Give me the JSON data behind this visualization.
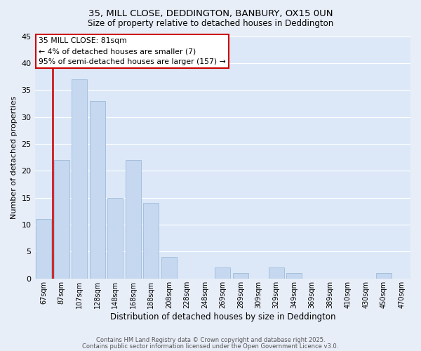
{
  "title1": "35, MILL CLOSE, DEDDINGTON, BANBURY, OX15 0UN",
  "title2": "Size of property relative to detached houses in Deddington",
  "xlabel": "Distribution of detached houses by size in Deddington",
  "ylabel": "Number of detached properties",
  "bar_labels": [
    "67sqm",
    "87sqm",
    "107sqm",
    "128sqm",
    "148sqm",
    "168sqm",
    "188sqm",
    "208sqm",
    "228sqm",
    "248sqm",
    "269sqm",
    "289sqm",
    "309sqm",
    "329sqm",
    "349sqm",
    "369sqm",
    "389sqm",
    "410sqm",
    "430sqm",
    "450sqm",
    "470sqm"
  ],
  "bar_values": [
    11,
    22,
    37,
    33,
    15,
    22,
    14,
    4,
    0,
    0,
    2,
    1,
    0,
    2,
    1,
    0,
    0,
    0,
    0,
    1,
    0
  ],
  "bar_color": "#c5d8f0",
  "bar_edgecolor": "#a0bcd8",
  "highlight_color": "#cc0000",
  "annotation_title": "35 MILL CLOSE: 81sqm",
  "annotation_line1": "← 4% of detached houses are smaller (7)",
  "annotation_line2": "95% of semi-detached houses are larger (157) →",
  "ylim": [
    0,
    45
  ],
  "yticks": [
    0,
    5,
    10,
    15,
    20,
    25,
    30,
    35,
    40,
    45
  ],
  "fig_bg_color": "#e8eef8",
  "ax_bg_color": "#dce8f8",
  "grid_color": "#ffffff",
  "footnote1": "Contains HM Land Registry data © Crown copyright and database right 2025.",
  "footnote2": "Contains public sector information licensed under the Open Government Licence v3.0.",
  "footnote_color": "#555555"
}
